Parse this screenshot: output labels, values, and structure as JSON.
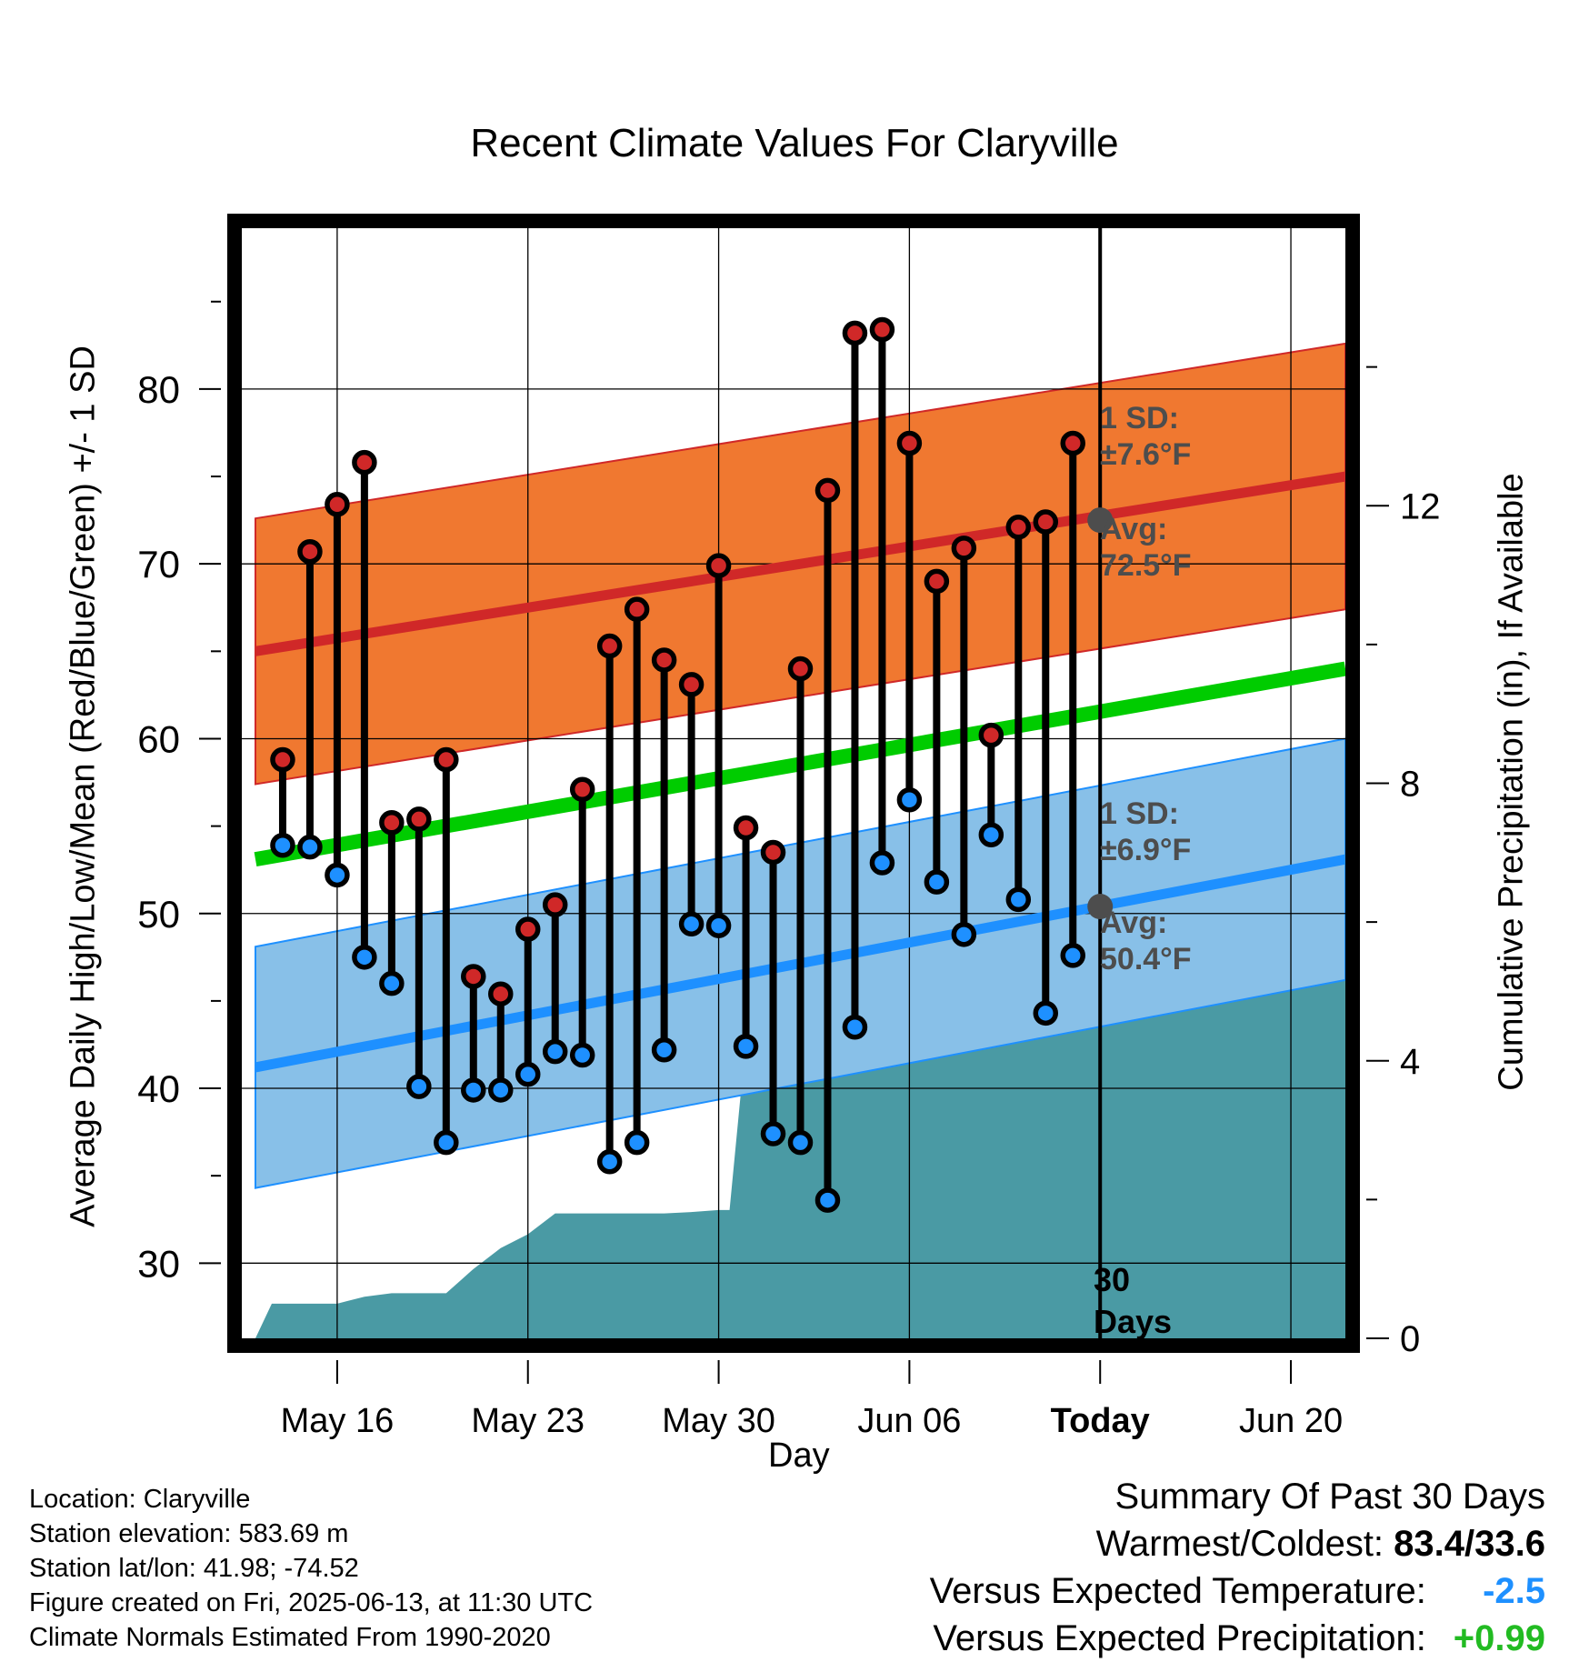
{
  "title": "Recent Climate Values For Claryville",
  "y_left_label": "Average Daily High/Low/Mean (Red/Blue/Green) +/- 1 SD",
  "y_right_label": "Cumulative Precipitation (in), If Available",
  "x_label": "Day",
  "info": {
    "location": "Location: Claryville",
    "elevation": "Station elevation: 583.69 m",
    "latlon": "Station lat/lon: 41.98; -74.52",
    "created": "Figure created on Fri, 2025-06-13, at 11:30 UTC",
    "normals": "Climate Normals Estimated From 1990-2020"
  },
  "summary": {
    "heading": "Summary Of Past 30 Days",
    "warm_cold_label": "Warmest/Coldest:",
    "warm_cold_value": "83.4/33.6",
    "temp_label": "Versus Expected Temperature:",
    "temp_value": "-2.5",
    "temp_color": "#1e90ff",
    "precip_label": "Versus Expected Precipitation:",
    "precip_value": "+0.99",
    "precip_color": "#22bb22"
  },
  "annotations": {
    "high_sd_label": "1 SD:",
    "high_sd_value": "±7.6°F",
    "high_avg_label": "Avg:",
    "high_avg_value": "72.5°F",
    "low_sd_label": "1 SD:",
    "low_sd_value": "±6.9°F",
    "low_avg_label": "Avg:",
    "low_avg_value": "50.4°F",
    "days_number": "30",
    "days_word": "Days"
  },
  "colors": {
    "high_band": "#f07830",
    "high_line": "#d02828",
    "low_band": "#88c0e8",
    "low_line": "#1e90ff",
    "mean_line": "#00cc00",
    "precip_fill": "#4a9aa4",
    "high_dot": "#d02828",
    "low_dot": "#1e90ff"
  },
  "chart_data": {
    "type": "line",
    "x_tick_labels": [
      "May 16",
      "May 23",
      "May 30",
      "Jun 06",
      "Today",
      "Jun 20"
    ],
    "x_tick_days": [
      0,
      7,
      14,
      21,
      28,
      35
    ],
    "x_range_days": [
      -3.5,
      37
    ],
    "today_day": 28,
    "y_left_range": [
      25.7,
      89.2
    ],
    "y_left_ticks": [
      30,
      40,
      50,
      60,
      70,
      80
    ],
    "y_right_range": [
      0,
      16
    ],
    "y_right_ticks": [
      0,
      4,
      8,
      12
    ],
    "observed_days": [
      -2,
      -1,
      0,
      1,
      2,
      3,
      4,
      5,
      6,
      7,
      8,
      9,
      10,
      11,
      12,
      13,
      14,
      15,
      16,
      17,
      18,
      19,
      20,
      21,
      22,
      23,
      24,
      25,
      26,
      27
    ],
    "observed_high": [
      58.8,
      70.7,
      73.4,
      75.8,
      55.2,
      55.4,
      58.8,
      46.4,
      45.4,
      49.1,
      50.5,
      57.1,
      65.3,
      67.4,
      64.5,
      63.1,
      69.9,
      54.9,
      53.5,
      64.0,
      74.2,
      83.2,
      83.4,
      76.9,
      69.0,
      70.9,
      60.2,
      72.1,
      72.4,
      76.9
    ],
    "observed_low": [
      53.9,
      53.8,
      52.2,
      47.5,
      46.0,
      40.1,
      36.9,
      39.9,
      39.9,
      40.8,
      42.1,
      41.9,
      35.8,
      36.9,
      42.2,
      49.4,
      49.3,
      42.4,
      37.4,
      36.9,
      33.6,
      43.5,
      52.9,
      56.5,
      51.8,
      48.8,
      54.5,
      50.8,
      44.3,
      47.6
    ],
    "normal_days": [
      -3,
      37
    ],
    "normal_high": [
      65.0,
      75.0
    ],
    "normal_high_sd": 7.6,
    "normal_low": [
      41.2,
      53.1
    ],
    "normal_low_sd": 6.9,
    "normal_mean": [
      53.1,
      64.0
    ],
    "avg_high_today": 72.5,
    "avg_low_today": 50.4,
    "precip_days": [
      -3,
      -2.4,
      -1,
      0,
      1,
      2,
      4,
      5,
      6,
      7,
      8,
      9,
      12,
      13,
      14,
      14.4,
      15,
      17,
      20,
      21,
      22,
      23,
      24,
      25,
      26,
      27,
      37
    ],
    "precip_cumulative": [
      0,
      0.5,
      0.5,
      0.5,
      0.6,
      0.65,
      0.65,
      1.0,
      1.3,
      1.5,
      1.8,
      1.8,
      1.8,
      1.82,
      1.85,
      1.85,
      4.3,
      4.3,
      4.3,
      4.3,
      4.5,
      4.6,
      5.05,
      5.3,
      5.4,
      5.4,
      5.4
    ]
  }
}
